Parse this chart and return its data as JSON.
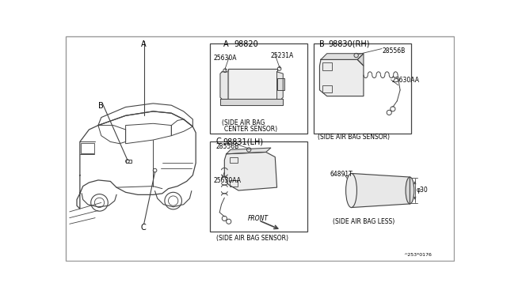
{
  "bg_color": "#ffffff",
  "line_color": "#444444",
  "text_color": "#000000",
  "part_numbers": {
    "A": "98820",
    "B": "98830(RH)",
    "C": "98831(LH)"
  },
  "labels": {
    "A_caption1": "(SIDE AIR BAG",
    "A_caption2": "CENTER SENSOR)",
    "B_caption": "(SIDE AIR BAG SENSOR)",
    "C_caption": "(SIDE AIR BAG SENSOR)",
    "D_caption": "(SIDE AIR BAG LESS)",
    "ref_code": "^253*0176"
  },
  "part_labels": {
    "A_25231A": "25231A",
    "A_25630A": "25630A",
    "B_28556B": "28556B",
    "B_25630AA": "25630AA",
    "C_28556B": "28556B",
    "C_25630AA": "25630AA",
    "C_FRONT": "FRONT",
    "D_64891T": "64891T",
    "D_phi30": "φ30"
  }
}
